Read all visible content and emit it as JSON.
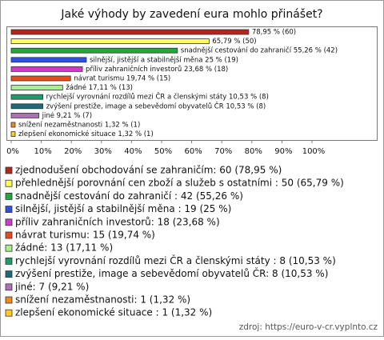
{
  "chart_data": {
    "type": "bar",
    "orientation": "horizontal",
    "title": "Jaké výhody by zavedení eura mohlo přinášet?",
    "categories": [
      "zjednodušení obchodování se zahraničím",
      "přehlednější porovnání cen zboží a služeb s ostatními",
      "snadnější cestování do zahraničí",
      "silnější, jistější a stabilnější měna",
      "příliv zahraničních investorů",
      "návrat turismu",
      "žádné",
      "rychlejší vyrovnání rozdílů mezi ČR a členskými státy",
      "zvýšení prestiže, image a sebevědomí obyvatelů ČR",
      "jiné",
      "snížení nezaměstnanosti",
      "zlepšení ekonomické situace"
    ],
    "values": [
      78.95,
      65.79,
      55.26,
      25,
      23.68,
      19.74,
      17.11,
      10.53,
      10.53,
      9.21,
      1.32,
      1.32
    ],
    "value_labels": [
      "78,95 % (60)",
      "65,79 % (50)",
      "snadnější cestování do zahraničí  55,26 % (42)",
      "silnější, jistější a stabilnější měna  25 % (19)",
      "příliv zahraničních investorů 23,68 % (18)",
      "návrat turismu 19,74 % (15)",
      "žádné 17,11 % (13)",
      "rychlejší vyrovnání rozdílů mezi ČR a členskými státy  10,53 % (8)",
      "zvýšení prestiže, image a sebevědomí obyvatelů ČR 10,53 % (8)",
      "jiné 9,21 % (7)",
      "snížení nezaměstnanosti 1,32 % (1)",
      "zlepšení ekonomické situace 1,32 % (1)"
    ],
    "legend_labels": [
      "zjednodušení obchodování se zahraničím: 60 (78,95 %)",
      "přehlednější porovnání cen zboží a služeb s ostatními : 50 (65,79 %)",
      "snadnější cestování do zahraničí : 42 (55,26 %)",
      "silnější, jistější a stabilnější měna : 19 (25 %)",
      "příliv zahraničních investorů: 18 (23,68 %)",
      "návrat turismu: 15 (19,74 %)",
      "žádné: 13 (17,11 %)",
      "rychlejší vyrovnání rozdílů mezi ČR a členskými státy : 8 (10,53 %)",
      "zvýšení prestiže, image a sebevědomí obyvatelů ČR: 8 (10,53 %)",
      "jiné: 7 (9,21 %)",
      "snížení nezaměstnanosti: 1 (1,32 %)",
      "zlepšení ekonomické situace : 1 (1,32 %)"
    ],
    "colors": [
      "#b8231b",
      "#ffff55",
      "#22a83a",
      "#2f4fe0",
      "#cc3ccc",
      "#e84a1c",
      "#a8f08a",
      "#1f9a6a",
      "#1d6a78",
      "#b070b8",
      "#ee8a1a",
      "#ffcc22"
    ],
    "xlim": [
      0,
      100
    ],
    "xticks": [
      {
        "value": 0,
        "label": "0%"
      },
      {
        "value": 10,
        "label": "10%"
      },
      {
        "value": 20,
        "label": "20%"
      },
      {
        "value": 30,
        "label": "30%"
      },
      {
        "value": 40,
        "label": "40%"
      },
      {
        "value": 50,
        "label": "50%"
      },
      {
        "value": 60,
        "label": "60%"
      },
      {
        "value": 70,
        "label": "70%"
      },
      {
        "value": 80,
        "label": "80%"
      },
      {
        "value": 90,
        "label": "90%"
      },
      {
        "value": 100,
        "label": "100%"
      }
    ],
    "grid": false,
    "source": "zdroj:  https://euro-v-cr.vyplnto.cz"
  }
}
